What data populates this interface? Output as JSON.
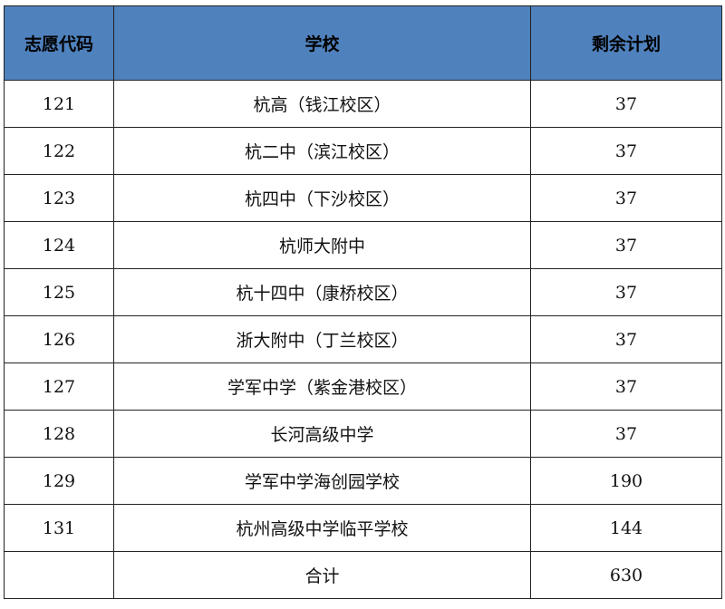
{
  "table": {
    "headers": [
      "志愿代码",
      "学校",
      "剩余计划"
    ],
    "rows": [
      {
        "code": "121",
        "school": "杭高（钱江校区）",
        "remaining": "37"
      },
      {
        "code": "122",
        "school": "杭二中（滨江校区）",
        "remaining": "37"
      },
      {
        "code": "123",
        "school": "杭四中（下沙校区）",
        "remaining": "37"
      },
      {
        "code": "124",
        "school": "杭师大附中",
        "remaining": "37"
      },
      {
        "code": "125",
        "school": "杭十四中（康桥校区）",
        "remaining": "37"
      },
      {
        "code": "126",
        "school": "浙大附中（丁兰校区）",
        "remaining": "37"
      },
      {
        "code": "127",
        "school": "学军中学（紫金港校区）",
        "remaining": "37"
      },
      {
        "code": "128",
        "school": "长河高级中学",
        "remaining": "37"
      },
      {
        "code": "129",
        "school": "学军中学海创园学校",
        "remaining": "190"
      },
      {
        "code": "131",
        "school": "杭州高级中学临平学校",
        "remaining": "144"
      }
    ],
    "total": {
      "code": "",
      "label": "合计",
      "remaining": "630"
    }
  },
  "colors": {
    "header_bg": "#4f81bd",
    "border": "#222222"
  }
}
